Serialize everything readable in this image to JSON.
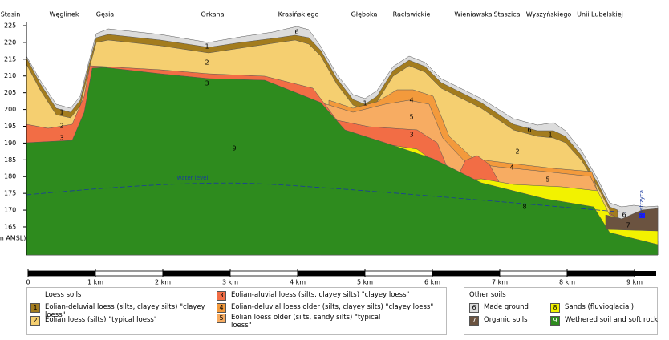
{
  "street_labels": [
    "Stasin",
    "Węglinek",
    "Gęsia",
    "Orkana",
    "Krasińskiego",
    "Głęboka",
    "Racławickie",
    "Wieniawska",
    "Staszica",
    "Wyszyńskiego",
    "Unii Lubelskiej"
  ],
  "elevation_axis": {
    "label": "m AMSL)",
    "ticks": [
      225,
      220,
      215,
      210,
      205,
      200,
      195,
      190,
      185,
      180,
      175,
      170,
      165
    ]
  },
  "distance_scale": {
    "ticks": [
      0,
      {
        "value": 1,
        "label": "1 km"
      },
      {
        "value": 2,
        "label": "2 km"
      },
      {
        "value": 3,
        "label": "3 km"
      },
      {
        "value": 4,
        "label": "4 km"
      },
      {
        "value": 5,
        "label": "5 km"
      },
      {
        "value": 6,
        "label": "6 km"
      },
      {
        "value": 7,
        "label": "7 km"
      },
      {
        "value": 8,
        "label": "8 km"
      },
      {
        "value": 9,
        "label": "9 km"
      }
    ]
  },
  "section": {
    "layer_labels": [
      "6",
      "1",
      "2",
      "3",
      "1",
      "2",
      "3",
      "9",
      "1",
      "4",
      "5",
      "3",
      "6",
      "1",
      "2",
      "4",
      "5",
      "8",
      "6",
      "7"
    ],
    "water_level": "water level",
    "river": "Bystrzyca"
  },
  "legend": {
    "loess_title": "Loess soils",
    "loess": [
      {
        "number": "1",
        "text": "Eolian-deluvial loess (silts, clayey silts) \"clayey loess\""
      },
      {
        "number": "2",
        "text": "Eolian loess (silts) \"typical loess\""
      },
      {
        "number": "3",
        "text": "Eolian-aluvial loess (silts, clayey silts) \"clayey loess\""
      },
      {
        "number": "4",
        "text": "Eolian-deluvial loess older (silts, clayey silts) \"clayey loess\""
      },
      {
        "number": "5",
        "text": "Eolian loess older (silts, sandy silts) \"typical loess\""
      }
    ],
    "other_title": "Other soils",
    "other": [
      {
        "number": "6",
        "text": "Made ground"
      },
      {
        "number": "7",
        "text": "Organic soils"
      },
      {
        "number": "8",
        "text": "Sands (fluvioglacial)"
      },
      {
        "number": "9",
        "text": "Wethered soil and soft rock"
      }
    ]
  }
}
